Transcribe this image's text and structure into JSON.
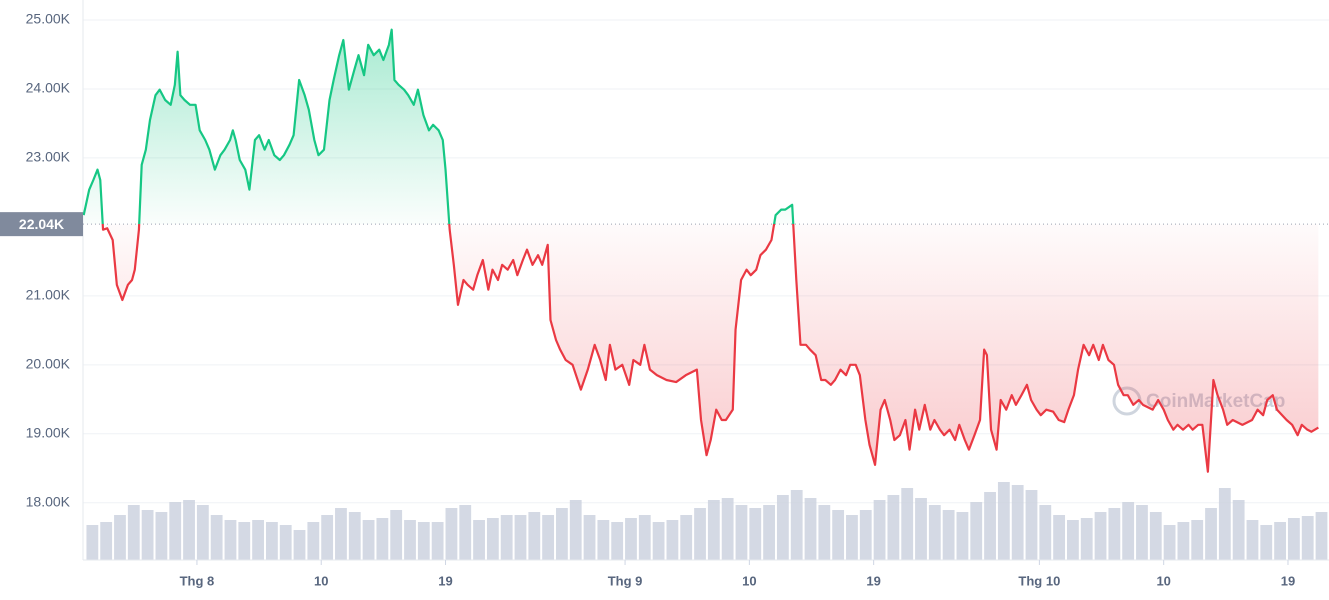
{
  "chart_data": {
    "type": "line",
    "x": [
      -8.2,
      -7.8,
      -7.5,
      -7.2,
      -7.0,
      -6.8,
      -6.5,
      -6.1,
      -5.8,
      -5.4,
      -5.0,
      -4.7,
      -4.5,
      -4.2,
      -4.0,
      -3.7,
      -3.4,
      -3.0,
      -2.7,
      -2.3,
      -1.9,
      -1.6,
      -1.4,
      -1.2,
      -0.9,
      -0.5,
      -0.1,
      0.2,
      0.6,
      0.9,
      1.3,
      1.7,
      2.0,
      2.4,
      2.6,
      2.8,
      3.1,
      3.5,
      3.8,
      4.2,
      4.5,
      4.9,
      5.2,
      5.6,
      6.0,
      6.3,
      6.7,
      7.0,
      7.4,
      7.8,
      8.1,
      8.5,
      8.8,
      9.2,
      9.6,
      9.9,
      10.3,
      10.6,
      11.0,
      11.4,
      11.7,
      12.1,
      12.4,
      12.8,
      13.2,
      13.5,
      13.9,
      14.1,
      14.3,
      14.6,
      15.0,
      15.3,
      15.7,
      16.0,
      16.4,
      16.8,
      17.1,
      17.5,
      17.8,
      18.0,
      18.3,
      18.6,
      18.9,
      19.3,
      19.6,
      20.0,
      20.3,
      20.7,
      21.1,
      21.4,
      21.8,
      22.1,
      22.5,
      22.9,
      23.2,
      23.6,
      23.9,
      24.3,
      24.7,
      25.0,
      25.4,
      25.6,
      26.0,
      26.3,
      26.7,
      27.2,
      27.8,
      28.3,
      28.8,
      29.2,
      29.6,
      29.9,
      30.3,
      30.8,
      31.3,
      31.6,
      32.1,
      32.4,
      32.8,
      33.3,
      34.0,
      34.7,
      35.4,
      36.2,
      36.5,
      36.9,
      37.2,
      37.6,
      38.0,
      38.3,
      38.8,
      39.0,
      39.4,
      39.8,
      40.1,
      40.5,
      40.8,
      41.2,
      41.6,
      41.9,
      42.3,
      42.6,
      43.1,
      43.4,
      43.7,
      44.1,
      44.4,
      44.8,
      45.2,
      45.5,
      45.9,
      46.2,
      46.6,
      47.0,
      47.3,
      47.7,
      48.0,
      48.4,
      48.7,
      49.1,
      49.5,
      49.8,
      50.2,
      50.5,
      50.9,
      51.3,
      51.6,
      52.0,
      52.3,
      52.7,
      53.1,
      53.4,
      53.8,
      54.1,
      54.5,
      54.9,
      55.2,
      55.6,
      55.9,
      56.3,
      56.7,
      57.0,
      57.2,
      57.5,
      57.9,
      58.2,
      58.6,
      59.0,
      59.3,
      59.7,
      60.1,
      60.4,
      60.8,
      61.1,
      61.5,
      62.0,
      62.4,
      62.8,
      63.1,
      63.5,
      63.8,
      64.2,
      64.6,
      64.9,
      65.3,
      65.6,
      66.0,
      66.4,
      66.7,
      67.1,
      67.4,
      67.8,
      68.2,
      68.5,
      69.2,
      69.6,
      70.0,
      70.3,
      70.7,
      71.0,
      71.4,
      71.8,
      72.1,
      72.5,
      72.8,
      73.2,
      73.6,
      73.9,
      74.3,
      74.6,
      75.0,
      75.7,
      76.4,
      76.8,
      77.2,
      77.5,
      77.9,
      78.2,
      78.9,
      79.3,
      79.7,
      80.0,
      80.4,
      80.7,
      81.2
    ],
    "values": [
      22170,
      22540,
      22680,
      22830,
      22680,
      21960,
      21980,
      21810,
      21160,
      20940,
      21160,
      21230,
      21380,
      21960,
      22900,
      23120,
      23550,
      23910,
      23990,
      23840,
      23770,
      24060,
      24540,
      23910,
      23840,
      23770,
      23770,
      23400,
      23260,
      23120,
      22830,
      23040,
      23120,
      23260,
      23400,
      23260,
      22970,
      22830,
      22540,
      23260,
      23330,
      23120,
      23260,
      23040,
      22970,
      23040,
      23190,
      23330,
      24130,
      23910,
      23700,
      23260,
      23040,
      23120,
      23840,
      24130,
      24490,
      24710,
      23990,
      24280,
      24490,
      24200,
      24640,
      24490,
      24570,
      24420,
      24640,
      24860,
      24130,
      24060,
      23990,
      23910,
      23770,
      23990,
      23620,
      23400,
      23480,
      23400,
      23260,
      22830,
      21960,
      21450,
      20870,
      21230,
      21160,
      21090,
      21300,
      21520,
      21090,
      21380,
      21230,
      21450,
      21380,
      21520,
      21300,
      21520,
      21670,
      21450,
      21590,
      21450,
      21740,
      20650,
      20360,
      20220,
      20070,
      20000,
      19640,
      19930,
      20290,
      20070,
      19780,
      20290,
      19930,
      20000,
      19710,
      20070,
      20000,
      20290,
      19930,
      19850,
      19780,
      19750,
      19850,
      19930,
      19200,
      18690,
      18910,
      19350,
      19200,
      19200,
      19350,
      20510,
      21230,
      21380,
      21300,
      21380,
      21590,
      21670,
      21810,
      22170,
      22250,
      22250,
      22320,
      21230,
      20290,
      20290,
      20220,
      20140,
      19780,
      19780,
      19710,
      19780,
      19930,
      19850,
      20000,
      20000,
      19850,
      19200,
      18840,
      18550,
      19350,
      19490,
      19200,
      18910,
      18980,
      19200,
      18770,
      19350,
      19060,
      19420,
      19060,
      19200,
      19060,
      18980,
      19060,
      18910,
      19130,
      18910,
      18770,
      18980,
      19200,
      20220,
      20140,
      19060,
      18770,
      19490,
      19350,
      19560,
      19420,
      19560,
      19710,
      19490,
      19350,
      19270,
      19350,
      19320,
      19200,
      19170,
      19350,
      19560,
      19930,
      20290,
      20140,
      20290,
      20070,
      20290,
      20070,
      20000,
      19710,
      19560,
      19560,
      19420,
      19490,
      19420,
      19350,
      19490,
      19350,
      19200,
      19060,
      19130,
      19060,
      19130,
      19060,
      19130,
      19130,
      18450,
      19780,
      19560,
      19350,
      19130,
      19200,
      19130,
      19200,
      19350,
      19270,
      19490,
      19560,
      19350,
      19200,
      19130,
      18980,
      19130,
      19060,
      19030,
      19090
    ],
    "up_color": "#16c784",
    "down_color": "#ea3943",
    "baseline": {
      "value": 22040,
      "label": "22.04K"
    },
    "volume": {
      "x": [
        -8,
        -7,
        -6,
        -5,
        -4,
        -3,
        -2,
        -1,
        0,
        1,
        2,
        3,
        4,
        5,
        6,
        7,
        8,
        9,
        10,
        11,
        12,
        13,
        14,
        15,
        16,
        17,
        18,
        19,
        20,
        21,
        22,
        23,
        24,
        25,
        26,
        27,
        28,
        29,
        30,
        31,
        32,
        33,
        34,
        35,
        36,
        37,
        38,
        39,
        40,
        41,
        42,
        43,
        44,
        45,
        46,
        47,
        48,
        49,
        50,
        51,
        52,
        53,
        54,
        55,
        56,
        57,
        58,
        59,
        60,
        61,
        62,
        63,
        64,
        65,
        66,
        67,
        68,
        69,
        70,
        71,
        72,
        73,
        74,
        75,
        76,
        77,
        78,
        79,
        80,
        81
      ],
      "values": [
        35,
        38,
        45,
        55,
        50,
        48,
        58,
        60,
        55,
        45,
        40,
        38,
        40,
        38,
        35,
        30,
        38,
        45,
        52,
        48,
        40,
        42,
        50,
        40,
        38,
        38,
        52,
        55,
        40,
        42,
        45,
        45,
        48,
        45,
        52,
        60,
        45,
        40,
        38,
        42,
        45,
        38,
        40,
        45,
        52,
        60,
        62,
        55,
        52,
        55,
        65,
        70,
        62,
        55,
        50,
        45,
        50,
        60,
        65,
        72,
        62,
        55,
        50,
        48,
        58,
        68,
        78,
        75,
        70,
        55,
        45,
        40,
        42,
        48,
        52,
        58,
        55,
        48,
        35,
        38,
        40,
        52,
        72,
        60,
        40,
        35,
        38,
        42,
        44,
        48
      ],
      "axis": "y2",
      "color": "#c9cfdd"
    },
    "xlim": [
      -8.25,
      81.97
    ],
    "xticks": [
      {
        "value": 0,
        "label": "Thg 8"
      },
      {
        "value": 9,
        "label": "10"
      },
      {
        "value": 18,
        "label": "19"
      },
      {
        "value": 31,
        "label": "Thg 9"
      },
      {
        "value": 40,
        "label": "10"
      },
      {
        "value": 49,
        "label": "19"
      },
      {
        "value": 61,
        "label": "Thg 10"
      },
      {
        "value": 70,
        "label": "10"
      },
      {
        "value": 79,
        "label": "19"
      }
    ],
    "ylim": [
      17170,
      25290
    ],
    "yticks": [
      {
        "value": 18000,
        "label": "18.00K"
      },
      {
        "value": 19000,
        "label": "19.00K"
      },
      {
        "value": 20000,
        "label": "20.00K"
      },
      {
        "value": 21000,
        "label": "21.00K"
      },
      {
        "value": 23000,
        "label": "23.00K"
      },
      {
        "value": 24000,
        "label": "24.00K"
      },
      {
        "value": 25000,
        "label": "25.00K"
      }
    ],
    "y2lim": [
      0,
      100
    ],
    "grid": true,
    "watermark": "CoinMarketCap"
  }
}
